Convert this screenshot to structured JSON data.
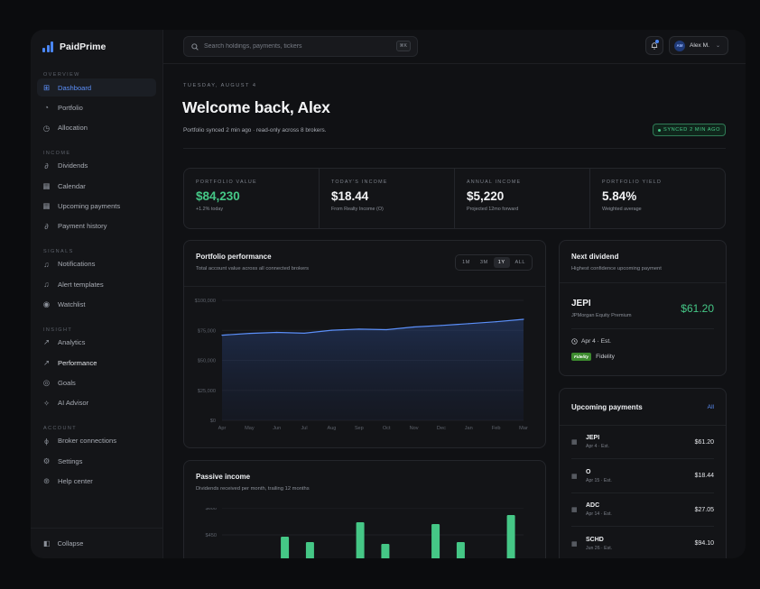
{
  "brand": {
    "name": "PaidPrime"
  },
  "sidebar": {
    "sections": [
      {
        "label": "OVERVIEW",
        "items": [
          {
            "label": "Dashboard",
            "icon": "grid-icon",
            "glyph": "⊞",
            "active": true
          },
          {
            "label": "Portfolio",
            "icon": "pie-icon",
            "glyph": "◔"
          },
          {
            "label": "Allocation",
            "icon": "donut-icon",
            "glyph": "◷"
          }
        ]
      },
      {
        "label": "INCOME",
        "items": [
          {
            "label": "Dividends",
            "icon": "link-icon",
            "glyph": "∂"
          },
          {
            "label": "Calendar",
            "icon": "calendar-icon",
            "glyph": "▦"
          },
          {
            "label": "Upcoming payments",
            "icon": "calendar-icon",
            "glyph": "▦"
          },
          {
            "label": "Payment history",
            "icon": "link-icon",
            "glyph": "∂"
          }
        ]
      },
      {
        "label": "SIGNALS",
        "items": [
          {
            "label": "Notifications",
            "icon": "bell-icon",
            "glyph": "♫"
          },
          {
            "label": "Alert templates",
            "icon": "bell-icon",
            "glyph": "♫"
          },
          {
            "label": "Watchlist",
            "icon": "eye-icon",
            "glyph": "◉"
          }
        ]
      },
      {
        "label": "INSIGHT",
        "items": [
          {
            "label": "Analytics",
            "icon": "trend-icon",
            "glyph": "↗"
          },
          {
            "label": "Performance",
            "icon": "trend-icon",
            "glyph": "↗",
            "bold": true
          },
          {
            "label": "Goals",
            "icon": "target-icon",
            "glyph": "◎"
          },
          {
            "label": "AI Advisor",
            "icon": "sparkle-icon",
            "glyph": "✧"
          }
        ]
      },
      {
        "label": "ACCOUNT",
        "items": [
          {
            "label": "Broker connections",
            "icon": "plug-icon",
            "glyph": "ϕ"
          },
          {
            "label": "Settings",
            "icon": "gear-icon",
            "glyph": "⚙"
          },
          {
            "label": "Help center",
            "icon": "help-icon",
            "glyph": "⊛"
          }
        ]
      }
    ],
    "collapse_label": "Collapse"
  },
  "topbar": {
    "search_placeholder": "Search holdings, payments, tickers",
    "shortcut": "⌘K",
    "user_initials": "AM",
    "user_name": "Alex M."
  },
  "header": {
    "date": "TUESDAY, AUGUST 4",
    "welcome": "Welcome back, Alex",
    "sync_note": "Portfolio synced 2 min ago · read-only across 8 brokers.",
    "synced_badge": "SYNCED 2 MIN AGO"
  },
  "stats": [
    {
      "label": "PORTFOLIO VALUE",
      "value": "$84,230",
      "sub": "+1.2% today",
      "green": true
    },
    {
      "label": "TODAY'S INCOME",
      "value": "$18.44",
      "sub": "From Realty Income (O)"
    },
    {
      "label": "ANNUAL INCOME",
      "value": "$5,220",
      "sub": "Projected 12mo forward"
    },
    {
      "label": "PORTFOLIO YIELD",
      "value": "5.84%",
      "sub": "Weighted average"
    }
  ],
  "performance": {
    "title": "Portfolio performance",
    "subtitle": "Total account value across all connected brokers",
    "ranges": [
      "1M",
      "3M",
      "1Y",
      "ALL"
    ],
    "active_range": "1Y"
  },
  "passive": {
    "title": "Passive income",
    "subtitle": "Dividends received per month, trailing 12 months"
  },
  "next_dividend": {
    "title": "Next dividend",
    "subtitle": "Highest confidence upcoming payment",
    "ticker": "JEPI",
    "name": "JPMorgan Equity Premium",
    "amount": "$61.20",
    "date": "Apr 4 · Est.",
    "broker_logo": "Fidelity",
    "broker": "Fidelity"
  },
  "upcoming": {
    "title": "Upcoming payments",
    "all_label": "All",
    "rows": [
      {
        "ticker": "JEPI",
        "date": "Apr 4 · Est.",
        "amount": "$61.20"
      },
      {
        "ticker": "O",
        "date": "Apr 15 · Est.",
        "amount": "$18.44"
      },
      {
        "ticker": "ADC",
        "date": "Apr 14 · Est.",
        "amount": "$27.05"
      },
      {
        "ticker": "SCHD",
        "date": "Jun 26 · Est.",
        "amount": "$94.10"
      }
    ]
  },
  "colors": {
    "accent": "#4a86f5",
    "green": "#45c786",
    "bg": "#101114"
  },
  "chart_data": [
    {
      "type": "area",
      "title": "Portfolio performance",
      "categories": [
        "Apr",
        "May",
        "Jun",
        "Jul",
        "Aug",
        "Sep",
        "Oct",
        "Nov",
        "Dec",
        "Jan",
        "Feb",
        "Mar"
      ],
      "values": [
        71000,
        72500,
        73300,
        72600,
        75100,
        76000,
        75600,
        77800,
        79100,
        80600,
        82200,
        84200
      ],
      "y_ticks": [
        "$0",
        "$25,000",
        "$50,000",
        "$75,000",
        "$100,000"
      ],
      "ylim": [
        0,
        100000
      ],
      "grid": true
    },
    {
      "type": "bar",
      "title": "Passive income",
      "values": [
        null,
        null,
        440,
        410,
        null,
        520,
        400,
        null,
        510,
        410,
        null,
        560
      ],
      "y_ticks": [
        "$450",
        "$600"
      ],
      "ylim": [
        300,
        600
      ],
      "grid": true
    }
  ]
}
